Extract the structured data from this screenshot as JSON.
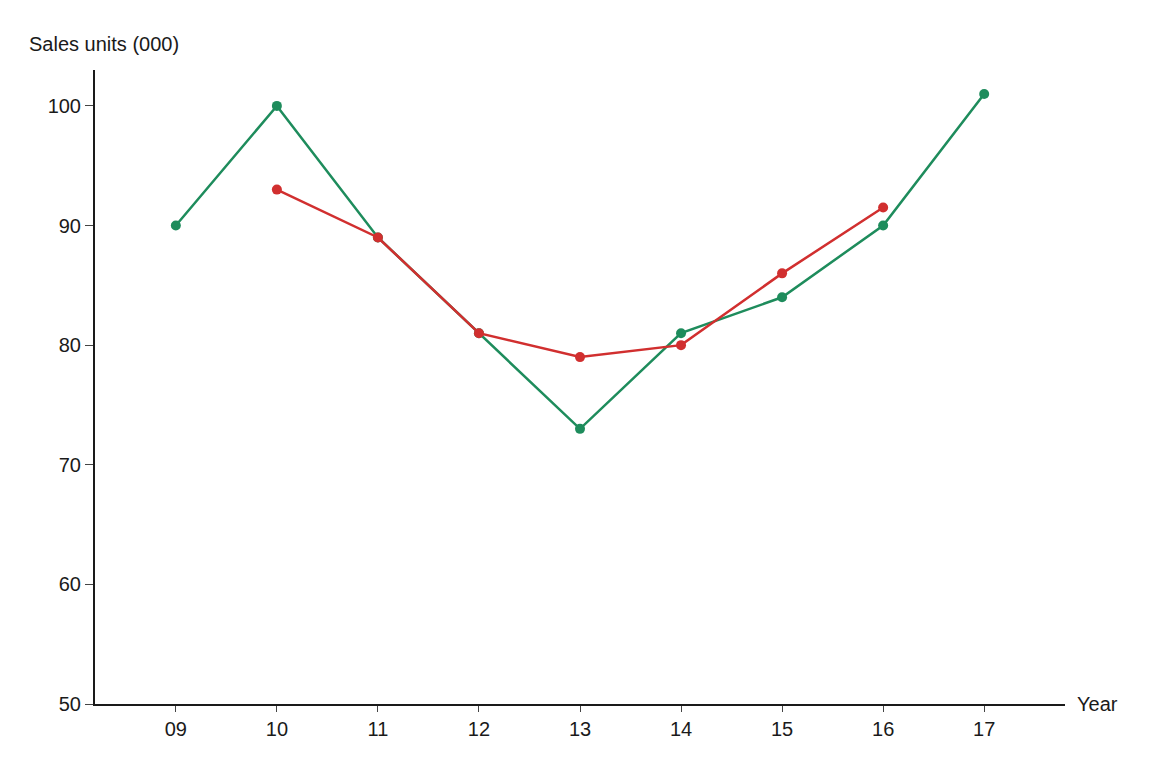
{
  "chart_data": {
    "type": "line",
    "x_label": "Year",
    "y_label": "Sales units (000)",
    "categories": [
      "09",
      "10",
      "11",
      "12",
      "13",
      "14",
      "15",
      "16",
      "17"
    ],
    "series": [
      {
        "color": "#1e8c5c",
        "marker": "circle",
        "line_style": "solid",
        "values": [
          90,
          100,
          89,
          81,
          73,
          81,
          84,
          90,
          101
        ]
      },
      {
        "color": "#d12f2f",
        "marker": "circle",
        "line_style": "solid",
        "values": [
          null,
          93,
          89,
          81,
          79,
          80,
          86,
          91.5,
          null
        ]
      }
    ],
    "ylim": [
      50,
      103
    ],
    "yticks": [
      50,
      60,
      70,
      80,
      90,
      100
    ],
    "grid": false
  }
}
